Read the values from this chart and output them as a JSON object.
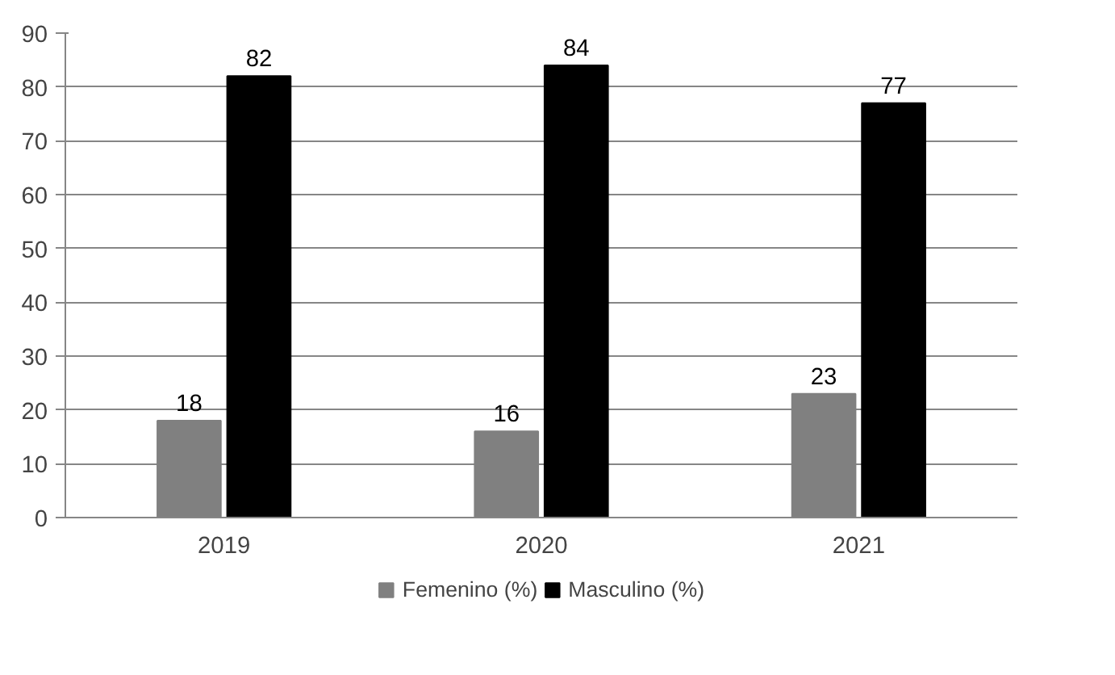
{
  "chart_data": {
    "type": "bar",
    "categories": [
      "2019",
      "2020",
      "2021"
    ],
    "series": [
      {
        "name": "Femenino (%)",
        "color": "#808080",
        "values": [
          18,
          16,
          23
        ]
      },
      {
        "name": "Masculino (%)",
        "color": "#000000",
        "values": [
          82,
          84,
          77
        ]
      }
    ],
    "ylim": [
      0,
      90
    ],
    "yticks": [
      0,
      10,
      20,
      30,
      40,
      50,
      60,
      70,
      80,
      90
    ],
    "grid": "y",
    "legend": "bottom",
    "data_labels": true
  }
}
